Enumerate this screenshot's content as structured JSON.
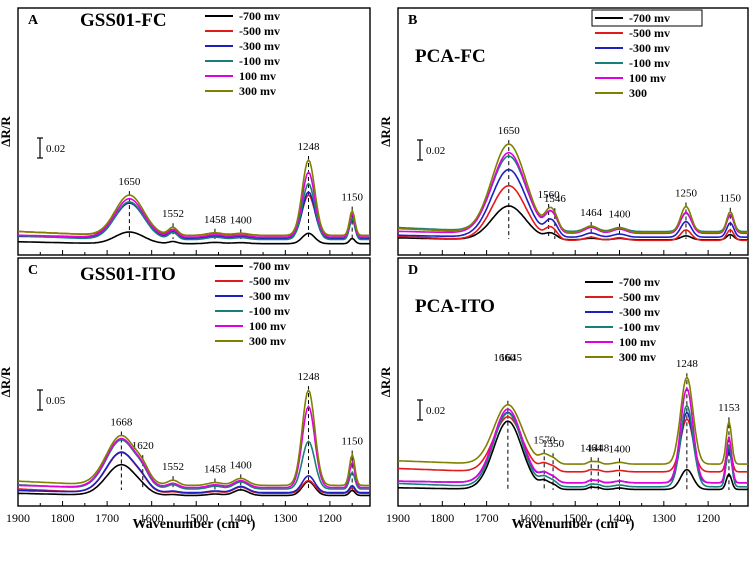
{
  "chart_data": [
    {
      "id": "A",
      "type": "line",
      "panel_letter": "A",
      "title": "GSS01-FC",
      "xlabel": "Wavenumber (cm⁻¹)",
      "ylabel": "ΔR/R",
      "xlim": [
        1900,
        1110
      ],
      "xticks": [
        1900,
        1800,
        1700,
        1600,
        1500,
        1400,
        1300,
        1200
      ],
      "scale_bar_label": "0.02",
      "legend": [
        "-700 mv",
        "-500 mv",
        "-300 mv",
        "-100 mv",
        "100 mv",
        "300 mv"
      ],
      "series": [
        {
          "name": "-700 mv",
          "color": "#000000",
          "baseline": 0.05,
          "heights": [
            0.45,
            0.08,
            0.05,
            0.04,
            0.4,
            0.2
          ]
        },
        {
          "name": "-500 mv",
          "color": "#e31a1c",
          "baseline": 0.37,
          "heights": [
            1.25,
            0.22,
            0.08,
            0.06,
            1.55,
            0.65
          ]
        },
        {
          "name": "-300 mv",
          "color": "#1f1fbf",
          "baseline": 0.26,
          "heights": [
            1.35,
            0.24,
            0.08,
            0.06,
            1.78,
            0.72
          ]
        },
        {
          "name": "-100 mv",
          "color": "#1a7f7a",
          "baseline": 0.21,
          "heights": [
            1.45,
            0.26,
            0.09,
            0.07,
            2.15,
            0.8
          ]
        },
        {
          "name": "100 mv",
          "color": "#e000e0",
          "baseline": 0.3,
          "heights": [
            1.48,
            0.27,
            0.09,
            0.07,
            2.5,
            0.88
          ]
        },
        {
          "name": "300 mv",
          "color": "#808000",
          "baseline": 0.37,
          "heights": [
            1.55,
            0.3,
            0.1,
            0.08,
            2.9,
            0.95
          ]
        }
      ],
      "peaks": [
        {
          "pos": 1650,
          "label": "1650",
          "width": 32
        },
        {
          "pos": 1552,
          "label": "1552",
          "width": 10
        },
        {
          "pos": 1458,
          "label": "1458",
          "width": 18
        },
        {
          "pos": 1400,
          "label": "1400",
          "width": 18
        },
        {
          "pos": 1248,
          "label": "1248",
          "width": 14
        },
        {
          "pos": 1150,
          "label": "1150",
          "width": 6
        }
      ]
    },
    {
      "id": "B",
      "type": "line",
      "panel_letter": "B",
      "title": "PCA-FC",
      "xlabel": "Wavenumber (cm⁻¹)",
      "ylabel": "ΔR/R",
      "xlim": [
        1900,
        1110
      ],
      "xticks": [
        1900,
        1800,
        1700,
        1600,
        1500,
        1400,
        1300,
        1200
      ],
      "scale_bar_label": "0.02",
      "legend": [
        "-700 mv",
        "-500 mv",
        "-300 mv",
        "-100 mv",
        "100 mv",
        "300"
      ],
      "series": [
        {
          "name": "-700 mv",
          "color": "#000000",
          "baseline": 0.2,
          "heights": [
            1.3,
            0.15,
            0.12,
            0.06,
            0.05,
            0.15,
            0.2
          ]
        },
        {
          "name": "-500 mv",
          "color": "#e31a1c",
          "baseline": 0.18,
          "heights": [
            2.1,
            0.3,
            0.25,
            0.12,
            0.1,
            0.4,
            0.4
          ]
        },
        {
          "name": "-300 mv",
          "color": "#1f1fbf",
          "baseline": 0.3,
          "heights": [
            2.6,
            0.4,
            0.35,
            0.16,
            0.12,
            0.6,
            0.55
          ]
        },
        {
          "name": "-100 mv",
          "color": "#1a7f7a",
          "baseline": 0.52,
          "heights": [
            2.9,
            0.45,
            0.4,
            0.2,
            0.15,
            0.7,
            0.65
          ]
        },
        {
          "name": "100 mv",
          "color": "#e000e0",
          "baseline": 0.45,
          "heights": [
            3.1,
            0.5,
            0.45,
            0.22,
            0.16,
            0.8,
            0.7
          ]
        },
        {
          "name": "300",
          "color": "#808000",
          "baseline": 0.48,
          "heights": [
            3.4,
            0.55,
            0.5,
            0.25,
            0.18,
            1.0,
            0.8
          ]
        }
      ],
      "peaks": [
        {
          "pos": 1650,
          "label": "1650",
          "width": 38
        },
        {
          "pos": 1560,
          "label": "1560",
          "width": 10
        },
        {
          "pos": 1546,
          "label": "1546",
          "width": 10
        },
        {
          "pos": 1464,
          "label": "1464",
          "width": 15
        },
        {
          "pos": 1400,
          "label": "1400",
          "width": 15
        },
        {
          "pos": 1250,
          "label": "1250",
          "width": 12
        },
        {
          "pos": 1150,
          "label": "1150",
          "width": 8
        }
      ]
    },
    {
      "id": "C",
      "type": "line",
      "panel_letter": "C",
      "title": "GSS01-ITO",
      "xlabel": "Wavenumber (cm⁻¹)",
      "ylabel": "ΔR/R",
      "xlim": [
        1900,
        1110
      ],
      "xticks": [
        1900,
        1800,
        1700,
        1600,
        1500,
        1400,
        1300,
        1200
      ],
      "scale_bar_label": "0.05",
      "legend": [
        "-700 mv",
        "-500 mv",
        "-300 mv",
        "-100 mv",
        "100 mv",
        "300 mv"
      ],
      "series": [
        {
          "name": "-700 mv",
          "color": "#000000",
          "baseline": 0.02,
          "heights": [
            1.1,
            0.05,
            0.03,
            0.05,
            0.2,
            0.5,
            0.18
          ]
        },
        {
          "name": "-500 mv",
          "color": "#e31a1c",
          "baseline": 0.1,
          "heights": [
            1.45,
            0.15,
            0.05,
            0.06,
            0.22,
            0.45,
            0.2
          ]
        },
        {
          "name": "-300 mv",
          "color": "#1f1fbf",
          "baseline": 0.12,
          "heights": [
            1.45,
            0.15,
            0.05,
            0.06,
            0.22,
            0.6,
            0.25
          ]
        },
        {
          "name": "-100 mv",
          "color": "#1a7f7a",
          "baseline": 0.25,
          "heights": [
            1.75,
            0.25,
            0.15,
            0.1,
            0.25,
            1.7,
            0.6
          ]
        },
        {
          "name": "100 mv",
          "color": "#e000e0",
          "baseline": 0.3,
          "heights": [
            1.75,
            0.25,
            0.15,
            0.1,
            0.25,
            2.9,
            0.9
          ]
        },
        {
          "name": "300 mv",
          "color": "#808000",
          "baseline": 0.38,
          "heights": [
            1.78,
            0.28,
            0.18,
            0.1,
            0.25,
            3.4,
            1.1
          ]
        }
      ],
      "peaks": [
        {
          "pos": 1668,
          "label": "1668",
          "width": 34
        },
        {
          "pos": 1620,
          "label": "1620",
          "width": 14
        },
        {
          "pos": 1552,
          "label": "1552",
          "width": 12
        },
        {
          "pos": 1458,
          "label": "1458",
          "width": 16
        },
        {
          "pos": 1400,
          "label": "1400",
          "width": 16
        },
        {
          "pos": 1248,
          "label": "1248",
          "width": 14
        },
        {
          "pos": 1150,
          "label": "1150",
          "width": 6
        }
      ]
    },
    {
      "id": "D",
      "type": "line",
      "panel_letter": "D",
      "title": "PCA-ITO",
      "xlabel": "Wavenumber (cm⁻¹)",
      "ylabel": "ΔR/R",
      "xlim": [
        1900,
        1110
      ],
      "xticks": [
        1900,
        1800,
        1700,
        1600,
        1500,
        1400,
        1300,
        1200
      ],
      "scale_bar_label": "0.02",
      "legend": [
        "-700 mv",
        "-500 mv",
        "-300 mv",
        "-100 mv",
        "100 mv",
        "300 mv"
      ],
      "series": [
        {
          "name": "-700 mv",
          "color": "#000000",
          "baseline": 0.3,
          "heights": [
            3.1,
            0.3,
            0.2,
            0.1,
            0.08,
            0.06,
            0.9,
            0.7
          ]
        },
        {
          "name": "-500 mv",
          "color": "#e31a1c",
          "baseline": 1.1,
          "heights": [
            2.5,
            0.3,
            0.22,
            0.1,
            0.08,
            0.06,
            2.4,
            1.2
          ]
        },
        {
          "name": "-300 mv",
          "color": "#1f1fbf",
          "baseline": 0.6,
          "heights": [
            3.2,
            0.35,
            0.25,
            0.12,
            0.1,
            0.08,
            3.2,
            1.5
          ]
        },
        {
          "name": "-100 mv",
          "color": "#1a7f7a",
          "baseline": 0.42,
          "heights": [
            3.35,
            0.35,
            0.25,
            0.12,
            0.1,
            0.08,
            3.7,
            1.9
          ]
        },
        {
          "name": "100 mv",
          "color": "#e000e0",
          "baseline": 0.6,
          "heights": [
            3.35,
            0.35,
            0.25,
            0.12,
            0.1,
            0.08,
            4.3,
            2.1
          ]
        },
        {
          "name": "300 mv",
          "color": "#808000",
          "baseline": 1.45,
          "heights": [
            2.7,
            0.35,
            0.25,
            0.12,
            0.1,
            0.08,
            3.95,
            1.95
          ]
        }
      ],
      "peaks": [
        {
          "pos": 1652,
          "label": "",
          "width": 32
        },
        {
          "pos": 1570,
          "label": "1570",
          "width": 10
        },
        {
          "pos": 1550,
          "label": "1550",
          "width": 10
        },
        {
          "pos": 1464,
          "label": "1464",
          "width": 7
        },
        {
          "pos": 1448,
          "label": "1448",
          "width": 7
        },
        {
          "pos": 1400,
          "label": "1400",
          "width": 12
        },
        {
          "pos": 1248,
          "label": "1248",
          "width": 14
        },
        {
          "pos": 1153,
          "label": "1153",
          "width": 6
        }
      ],
      "extra_labels": [
        {
          "pos": 1660,
          "label": "1660"
        },
        {
          "pos": 1645,
          "label": "1645"
        }
      ]
    }
  ]
}
